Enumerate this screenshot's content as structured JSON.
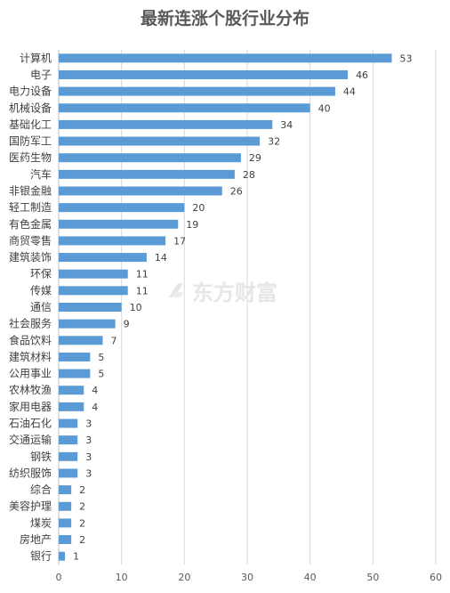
{
  "chart_data": {
    "type": "bar",
    "orientation": "horizontal",
    "title": "最新连涨个股行业分布",
    "categories": [
      "计算机",
      "电子",
      "电力设备",
      "机械设备",
      "基础化工",
      "国防军工",
      "医药生物",
      "汽车",
      "非银金融",
      "轻工制造",
      "有色金属",
      "商贸零售",
      "建筑装饰",
      "环保",
      "传媒",
      "通信",
      "社会服务",
      "食品饮料",
      "建筑材料",
      "公用事业",
      "农林牧渔",
      "家用电器",
      "石油石化",
      "交通运输",
      "钢铁",
      "纺织服饰",
      "综合",
      "美容护理",
      "煤炭",
      "房地产",
      "银行"
    ],
    "values": [
      53,
      46,
      44,
      40,
      34,
      32,
      29,
      28,
      26,
      20,
      19,
      17,
      14,
      11,
      11,
      10,
      9,
      7,
      5,
      5,
      4,
      4,
      3,
      3,
      3,
      3,
      2,
      2,
      2,
      2,
      1
    ],
    "xlim": [
      0,
      60
    ],
    "xticks": [
      0,
      10,
      20,
      30,
      40,
      50,
      60
    ],
    "grid": true,
    "legend": "none",
    "bar_color": "#5b9bd5",
    "watermark": "东方财富"
  }
}
